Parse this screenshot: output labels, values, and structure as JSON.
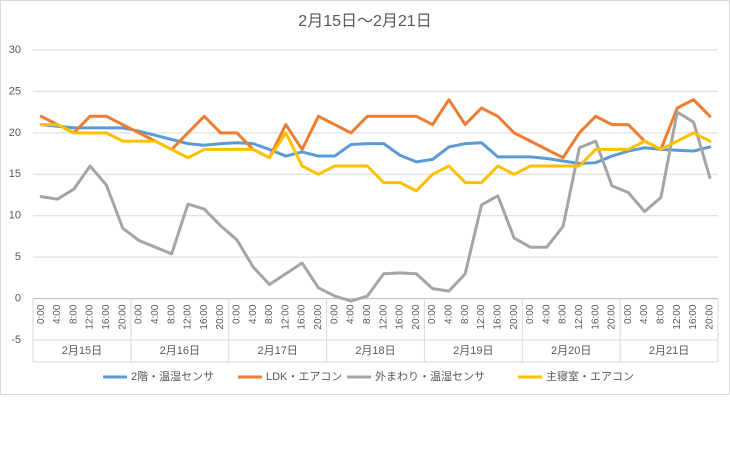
{
  "chart_data": {
    "type": "line",
    "title": "2月15日～2月21日",
    "categories": [
      "0:00",
      "4:00",
      "8:00",
      "12:00",
      "16:00",
      "20:00",
      "0:00",
      "4:00",
      "8:00",
      "12:00",
      "16:00",
      "20:00",
      "0:00",
      "4:00",
      "8:00",
      "12:00",
      "16:00",
      "20:00",
      "0:00",
      "4:00",
      "8:00",
      "12:00",
      "16:00",
      "20:00",
      "0:00",
      "4:00",
      "8:00",
      "12:00",
      "16:00",
      "20:00",
      "0:00",
      "4:00",
      "8:00",
      "12:00",
      "16:00",
      "20:00",
      "0:00",
      "4:00",
      "8:00",
      "12:00",
      "16:00",
      "20:00"
    ],
    "groups": [
      "2月15日",
      "2月16日",
      "2月17日",
      "2月18日",
      "2月19日",
      "2月20日",
      "2月21日"
    ],
    "series": [
      {
        "name": "2階・温湿センサ",
        "color": "#5b9bd5",
        "values": [
          21,
          20.8,
          20.6,
          20.6,
          20.6,
          20.6,
          20.2,
          19.7,
          19.2,
          18.7,
          18.5,
          18.7,
          18.8,
          18.7,
          18,
          17.2,
          17.7,
          17.2,
          17.2,
          18.6,
          18.7,
          18.7,
          17.3,
          16.5,
          16.8,
          18.3,
          18.7,
          18.8,
          17.1,
          17.1,
          17.1,
          16.9,
          16.6,
          16.3,
          16.4,
          17.2,
          17.8,
          18.2,
          18,
          17.9,
          17.8,
          18.3
        ]
      },
      {
        "name": "LDK・エアコン",
        "color": "#ed7d31",
        "values": [
          22,
          21,
          20,
          22,
          22,
          21,
          20,
          19,
          18,
          20,
          22,
          20,
          20,
          18,
          17,
          21,
          18,
          22,
          21,
          20,
          22,
          22,
          22,
          22,
          21,
          24,
          21,
          23,
          22,
          20,
          19,
          18,
          17,
          20,
          22,
          21,
          21,
          19,
          18,
          23,
          24,
          22
        ]
      },
      {
        "name": "外まわり・温湿センサ",
        "color": "#a5a5a5",
        "values": [
          12.3,
          12,
          13.2,
          16,
          13.7,
          8.5,
          7,
          6.2,
          5.4,
          11.4,
          10.8,
          8.8,
          7.1,
          3.8,
          1.7,
          3,
          4.3,
          1.3,
          0.3,
          -0.3,
          0.3,
          3,
          3.1,
          3,
          1.2,
          0.9,
          3,
          11.3,
          12.4,
          7.3,
          6.2,
          6.2,
          8.7,
          18.2,
          19,
          13.6,
          12.8,
          10.5,
          12.2,
          22.5,
          21.3,
          14.6
        ]
      },
      {
        "name": "主寝室・エアコン",
        "color": "#ffc000",
        "values": [
          21,
          21,
          20,
          20,
          20,
          19,
          19,
          19,
          18,
          17,
          18,
          18,
          18,
          18,
          17,
          20,
          16,
          15,
          16,
          16,
          16,
          14,
          14,
          13,
          15,
          16,
          14,
          14,
          16,
          15,
          16,
          16,
          16,
          16,
          18,
          18,
          18,
          19,
          18,
          19,
          20,
          19
        ]
      }
    ],
    "ylim": [
      -5,
      30
    ],
    "yticks": [
      -5,
      0,
      5,
      10,
      15,
      20,
      25,
      30
    ],
    "grid": true,
    "legend": "bottom"
  }
}
